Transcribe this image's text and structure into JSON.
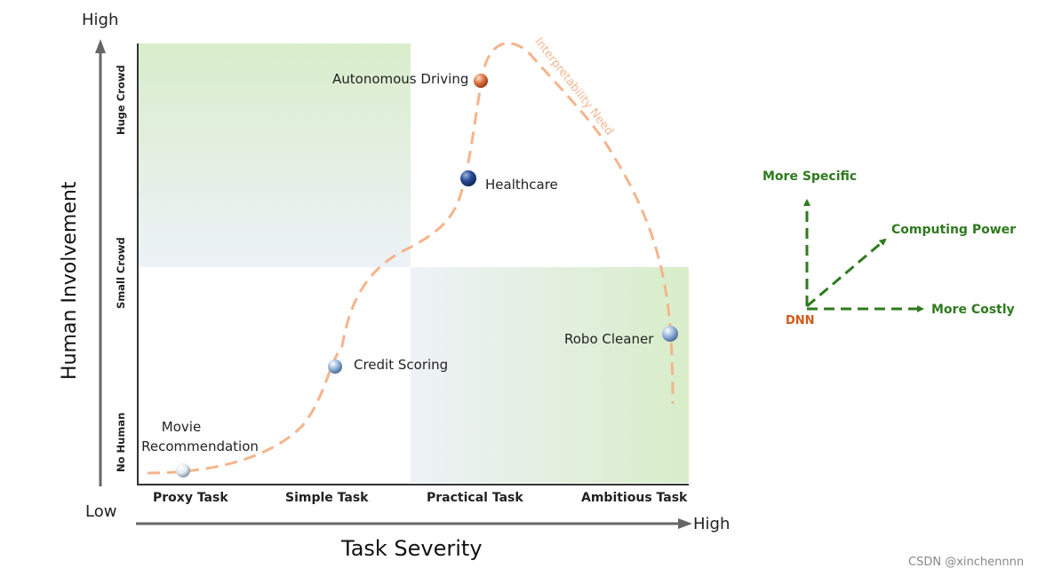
{
  "y_axis": {
    "title": "Human Involvement",
    "high": "High",
    "low": "Low",
    "ticks": [
      "Huge Crowd",
      "Small Crowd",
      "No Human"
    ]
  },
  "x_axis": {
    "title": "Task Severity",
    "high": "High",
    "ticks": [
      "Proxy Task",
      "Simple Task",
      "Practical Task",
      "Ambitious Task"
    ]
  },
  "curve_label": "Interpretability Need",
  "points": [
    {
      "label": "Autonomous Driving",
      "color": "orange"
    },
    {
      "label": "Healthcare",
      "color": "navy"
    },
    {
      "label": "Credit Scoring",
      "color": "lightblue"
    },
    {
      "label": "Robo Cleaner",
      "color": "lightblue"
    },
    {
      "label_line1": "Movie",
      "label_line2": "Recommendation",
      "color": "white"
    }
  ],
  "vectors": {
    "origin": "DNN",
    "up": "More Specific",
    "diag": "Computing Power",
    "right": "More Costly"
  },
  "watermark": "CSDN @xinchennnn",
  "colors": {
    "curve": "#f5b48c",
    "vector": "#2e7a1e",
    "dnn": "#d25a1a",
    "region": "#d7ecc8"
  }
}
